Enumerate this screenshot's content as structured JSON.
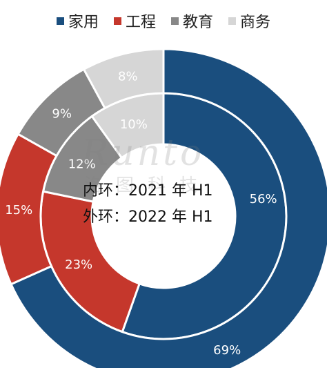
{
  "legend": [
    {
      "label": "家用",
      "color": "#1a4e7e"
    },
    {
      "label": "工程",
      "color": "#c5372c"
    },
    {
      "label": "教育",
      "color": "#888888"
    },
    {
      "label": "商务",
      "color": "#d6d6d6"
    }
  ],
  "center_lines": {
    "inner": "内环：2021 年 H1",
    "outer": "外环：2022 年 H1"
  },
  "watermark": {
    "text": "Runto",
    "sub": "洛图科技"
  },
  "chart_data": {
    "type": "pie",
    "categories": [
      "家用",
      "工程",
      "教育",
      "商务"
    ],
    "series": [
      {
        "name": "内环：2021 年 H1",
        "values": [
          56,
          23,
          12,
          10
        ],
        "labels": [
          "56%",
          "23%",
          "12%",
          "10%"
        ]
      },
      {
        "name": "外环：2022 年 H1",
        "values": [
          69,
          15,
          9,
          8
        ],
        "labels": [
          "69%",
          "15%",
          "9%",
          "8%"
        ]
      }
    ],
    "colors": [
      "#1a4e7e",
      "#c5372c",
      "#888888",
      "#d6d6d6"
    ],
    "label_colors": [
      "#ffffff",
      "#ffffff",
      "#ffffff",
      "#ffffff"
    ],
    "legend_position": "top"
  }
}
